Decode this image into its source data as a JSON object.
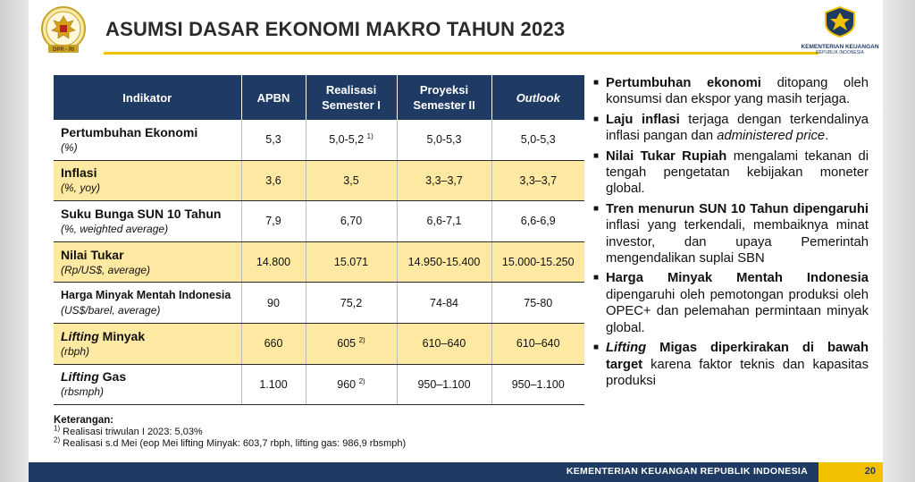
{
  "header": {
    "title": "ASUMSI DASAR EKONOMI MAKRO TAHUN 2023",
    "left_logo_text": "DPR - RI",
    "right_logo_line1": "KEMENTERIAN KEUANGAN",
    "right_logo_line2": "REPUBLIK INDONESIA"
  },
  "table": {
    "headers": [
      "Indikator",
      "APBN",
      "Realisasi Semester I",
      "Proyeksi Semester II",
      "Outlook"
    ],
    "rows": [
      {
        "name": "Pertumbuhan Ekonomi",
        "unit": "(%)",
        "apbn": "5,3",
        "realisasi": "5,0-5,2",
        "realisasi_note": "1)",
        "proyeksi": "5,0-5,3",
        "outlook": "5,0-5,3"
      },
      {
        "name": "Inflasi",
        "unit": "(%, yoy)",
        "apbn": "3,6",
        "realisasi": "3,5",
        "realisasi_note": "",
        "proyeksi": "3,3–3,7",
        "outlook": "3,3–3,7"
      },
      {
        "name": "Suku Bunga SUN 10 Tahun",
        "unit": "(%, weighted average)",
        "apbn": "7,9",
        "realisasi": "6,70",
        "realisasi_note": "",
        "proyeksi": "6,6-7,1",
        "outlook": "6,6-6,9"
      },
      {
        "name": "Nilai Tukar",
        "unit": "(Rp/US$, average)",
        "apbn": "14.800",
        "realisasi": "15.071",
        "realisasi_note": "",
        "proyeksi": "14.950-15.400",
        "outlook": "15.000-15.250"
      },
      {
        "name": "Harga Minyak Mentah Indonesia",
        "unit": "(US$/barel, average)",
        "apbn": "90",
        "realisasi": "75,2",
        "realisasi_note": "",
        "proyeksi": "74-84",
        "outlook": "75-80"
      },
      {
        "name_italic": "Lifting",
        "name_rest": " Minyak",
        "unit": "(rbph)",
        "apbn": "660",
        "realisasi": "605",
        "realisasi_note": "2)",
        "proyeksi": "610–640",
        "outlook": "610–640"
      },
      {
        "name_italic": "Lifting",
        "name_rest": " Gas",
        "unit": "(rbsmph)",
        "apbn": "1.100",
        "realisasi": "960",
        "realisasi_note": "2)",
        "proyeksi": "950–1.100",
        "outlook": "950–1.100"
      }
    ]
  },
  "notes": {
    "heading": "Keterangan:",
    "n1_mark": "1)",
    "n1_text": " Realisasi triwulan I 2023: 5,03%",
    "n2_mark": "2)",
    "n2_text": " Realisasi s.d Mei (eop Mei lifting Minyak: 603,7 rbph, lifting gas: 986,9 rbsmph)"
  },
  "bullets": {
    "b1": {
      "bold": "Pertumbuhan ekonomi",
      "rest": " ditopang oleh konsumsi dan ekspor yang masih terjaga."
    },
    "b2": {
      "bold": "Laju inflasi",
      "rest": " terjaga dengan terkendalinya inflasi pangan dan ",
      "italic": "administered price",
      "end": "."
    },
    "b3": {
      "bold": "Nilai Tukar Rupiah",
      "rest": " mengalami tekanan di tengah pengetatan kebijakan moneter global."
    },
    "b4": {
      "bold": "Tren menurun SUN 10 Tahun dipengaruhi",
      "rest": " inflasi yang terkendali, membaiknya minat investor, dan upaya Pemerintah mengendalikan suplai SBN"
    },
    "b5": {
      "bold": "Harga Minyak Mentah Indonesia",
      "rest": " dipengaruhi oleh pemotongan produksi oleh OPEC+ dan pelemahan permintaan minyak global."
    },
    "b6": {
      "bold_italic": "Lifting",
      "bold": " Migas diperkirakan di bawah target",
      "rest": " karena faktor teknis dan kapasitas produksi"
    }
  },
  "footer": {
    "text": "KEMENTERIAN KEUANGAN REPUBLIK INDONESIA",
    "page": "20"
  },
  "colors": {
    "navy": "#1f3b63",
    "gold": "#f2c200",
    "row_alt": "#fde9a1"
  }
}
